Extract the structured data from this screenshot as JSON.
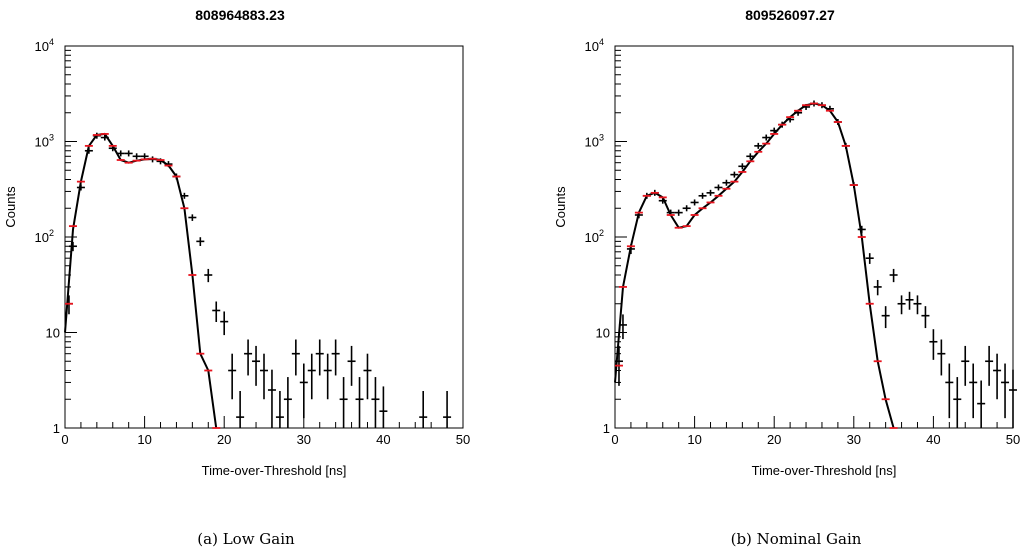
{
  "chart_data": [
    {
      "type": "scatter",
      "title": "808964883.23",
      "caption": "(a) Low Gain",
      "xlabel": "Time-over-Threshold [ns]",
      "ylabel": "Counts",
      "xlim": [
        0,
        50
      ],
      "ylim": [
        1,
        10000
      ],
      "yscale": "log",
      "grid": false,
      "xticks": [
        0,
        10,
        20,
        30,
        40,
        50
      ],
      "yticks": [
        {
          "value": 1,
          "base": "1",
          "exp": ""
        },
        {
          "value": 10,
          "base": "10",
          "exp": ""
        },
        {
          "value": 100,
          "base": "10",
          "exp": "2"
        },
        {
          "value": 1000,
          "base": "10",
          "exp": "3"
        },
        {
          "value": 10000,
          "base": "10",
          "exp": "4"
        }
      ],
      "series": [
        {
          "kind": "data",
          "color": "#000000",
          "x": [
            0.5,
            1,
            2,
            3,
            4,
            5,
            6,
            7,
            8,
            9,
            10,
            11,
            12,
            13,
            14,
            15,
            16,
            17,
            18,
            19,
            20,
            21,
            22,
            23,
            24,
            25,
            26,
            27,
            28,
            29,
            30,
            31,
            32,
            33,
            34,
            35,
            36,
            37,
            38,
            39,
            40,
            45,
            48
          ],
          "y": [
            20,
            80,
            330,
            800,
            1150,
            1100,
            850,
            750,
            750,
            700,
            700,
            650,
            620,
            580,
            430,
            270,
            160,
            90,
            40,
            17,
            13,
            4,
            1.3,
            6,
            5,
            4,
            2.5,
            1.3,
            2,
            6,
            3,
            4,
            6,
            4,
            6,
            2,
            5,
            2,
            4,
            2,
            1.5,
            1.3,
            1.3
          ]
        },
        {
          "kind": "fit",
          "color": "#000000",
          "x": [
            0,
            1,
            2,
            3,
            4,
            5,
            6,
            7,
            8,
            9,
            10,
            11,
            12,
            13,
            14,
            15,
            16,
            17,
            18,
            19
          ],
          "y": [
            10,
            120,
            380,
            900,
            1170,
            1200,
            900,
            640,
            600,
            630,
            650,
            660,
            640,
            560,
            430,
            200,
            40,
            6,
            4,
            1
          ]
        },
        {
          "kind": "fit-points",
          "color": "#e8141e",
          "x": [
            0.5,
            1,
            2,
            3,
            4,
            5,
            6,
            7,
            8,
            9,
            10,
            11,
            12,
            13,
            14,
            15,
            16,
            17,
            18,
            19
          ],
          "y": [
            20,
            130,
            380,
            900,
            1170,
            1200,
            900,
            640,
            600,
            630,
            650,
            660,
            640,
            560,
            430,
            200,
            40,
            6,
            4,
            1
          ]
        }
      ]
    },
    {
      "type": "scatter",
      "title": "809526097.27",
      "caption": "(b) Nominal Gain",
      "xlabel": "Time-over-Threshold [ns]",
      "ylabel": "Counts",
      "xlim": [
        0,
        50
      ],
      "ylim": [
        1,
        10000
      ],
      "yscale": "log",
      "grid": false,
      "xticks": [
        0,
        10,
        20,
        30,
        40,
        50
      ],
      "yticks": [
        {
          "value": 1,
          "base": "1",
          "exp": ""
        },
        {
          "value": 10,
          "base": "10",
          "exp": ""
        },
        {
          "value": 100,
          "base": "10",
          "exp": "2"
        },
        {
          "value": 1000,
          "base": "10",
          "exp": "3"
        },
        {
          "value": 10000,
          "base": "10",
          "exp": "4"
        }
      ],
      "series": [
        {
          "kind": "data",
          "color": "#000000",
          "x": [
            0.5,
            1,
            2,
            3,
            4,
            5,
            6,
            7,
            8,
            9,
            10,
            11,
            12,
            13,
            14,
            15,
            16,
            17,
            18,
            19,
            20,
            21,
            22,
            23,
            24,
            25,
            26,
            27,
            28,
            29,
            30,
            31,
            32,
            33,
            34,
            35,
            36,
            37,
            38,
            39,
            40,
            41,
            42,
            43,
            44,
            45,
            46,
            47,
            48,
            49,
            50
          ],
          "y": [
            5,
            12,
            75,
            170,
            270,
            290,
            240,
            180,
            180,
            200,
            230,
            270,
            290,
            330,
            370,
            450,
            550,
            700,
            900,
            1100,
            1300,
            1500,
            1700,
            2000,
            2300,
            2500,
            2400,
            2200,
            1600,
            900,
            350,
            120,
            60,
            30,
            15,
            40,
            20,
            22,
            20,
            15,
            8,
            6,
            3,
            2,
            5,
            3,
            1.8,
            5,
            4,
            3,
            2.5
          ]
        },
        {
          "kind": "fit",
          "color": "#000000",
          "x": [
            0,
            1,
            2,
            3,
            4,
            5,
            6,
            7,
            8,
            9,
            10,
            11,
            12,
            13,
            14,
            15,
            16,
            17,
            18,
            19,
            20,
            21,
            22,
            23,
            24,
            25,
            26,
            27,
            28,
            29,
            30,
            31,
            32,
            33,
            34,
            35
          ],
          "y": [
            3,
            30,
            80,
            180,
            270,
            290,
            260,
            170,
            125,
            130,
            170,
            200,
            230,
            270,
            320,
            380,
            480,
            620,
            780,
            950,
            1200,
            1500,
            1800,
            2100,
            2400,
            2500,
            2400,
            2100,
            1600,
            900,
            350,
            100,
            20,
            5,
            2,
            1
          ]
        },
        {
          "kind": "fit-points",
          "color": "#e8141e",
          "x": [
            0.5,
            1,
            2,
            3,
            4,
            5,
            6,
            7,
            8,
            9,
            10,
            11,
            12,
            13,
            14,
            15,
            16,
            17,
            18,
            19,
            20,
            21,
            22,
            23,
            24,
            25,
            26,
            27,
            28,
            29,
            30,
            31,
            32,
            33,
            34,
            35
          ],
          "y": [
            4.5,
            30,
            80,
            180,
            270,
            290,
            260,
            170,
            125,
            130,
            170,
            200,
            230,
            270,
            320,
            380,
            480,
            620,
            780,
            950,
            1200,
            1500,
            1800,
            2100,
            2400,
            2500,
            2400,
            2100,
            1600,
            900,
            350,
            100,
            20,
            5,
            2,
            1
          ]
        }
      ]
    }
  ]
}
